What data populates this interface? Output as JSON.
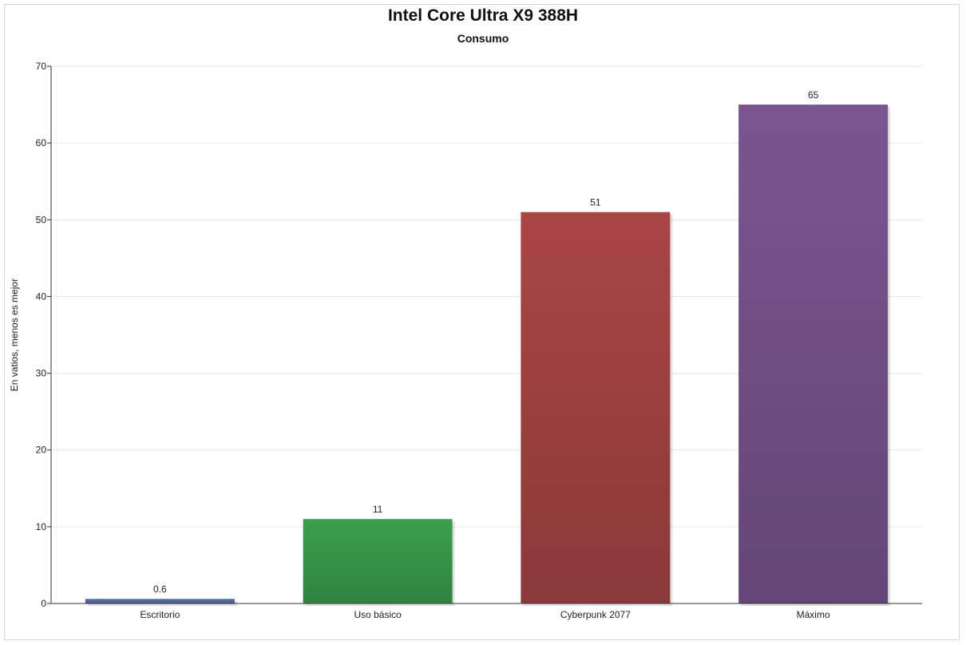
{
  "chart_data": {
    "type": "bar",
    "title": "Intel Core Ultra X9 388H",
    "subtitle": "Consumo",
    "ylabel": "En vatios, menos es mejor",
    "xlabel": "",
    "categories": [
      "Escritorio",
      "Uso básico",
      "Cyberpunk 2077",
      "Máximo"
    ],
    "values": [
      0.6,
      11,
      51,
      65
    ],
    "value_labels": [
      "0.6",
      "11",
      "51",
      "65"
    ],
    "colors": [
      "#5a6fa8",
      "#3aa04e",
      "#a94545",
      "#7a5590"
    ],
    "ylim": [
      0,
      70
    ],
    "yticks": [
      0,
      10,
      20,
      30,
      40,
      50,
      60,
      70
    ],
    "ytick_labels": [
      "0",
      "10",
      "20",
      "30",
      "40",
      "50",
      "60",
      "70"
    ],
    "grid": true,
    "legend": "none"
  }
}
